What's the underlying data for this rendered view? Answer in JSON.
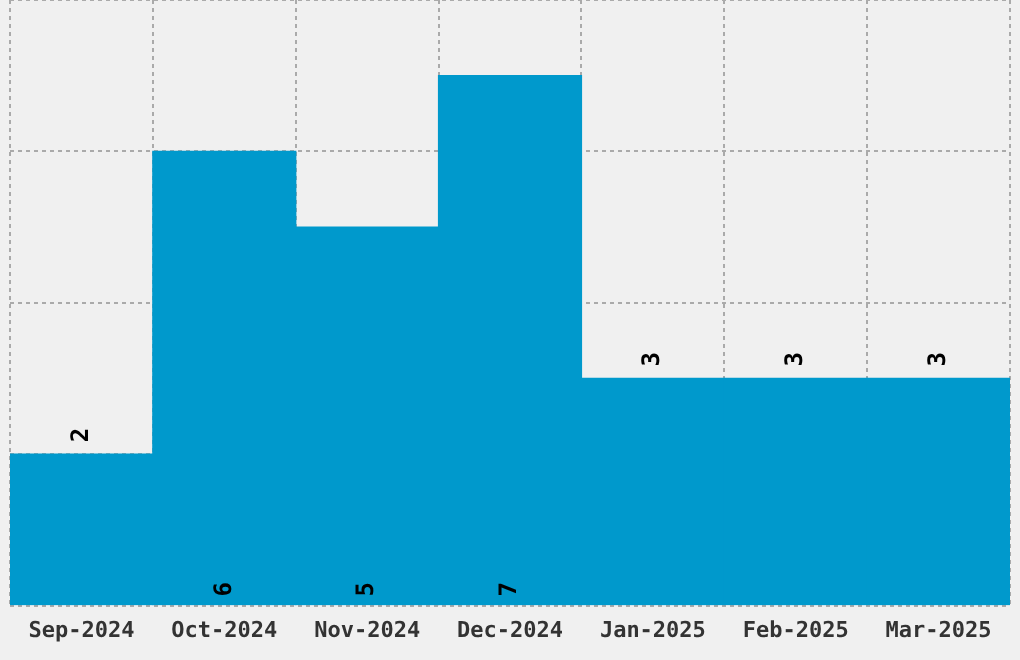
{
  "chart_data": {
    "type": "bar",
    "categories": [
      "Sep-2024",
      "Oct-2024",
      "Nov-2024",
      "Dec-2024",
      "Jan-2025",
      "Feb-2025",
      "Mar-2025"
    ],
    "values": [
      2,
      6,
      5,
      7,
      3,
      3,
      3
    ],
    "color": "#0099cc",
    "ylim": [
      0,
      8
    ],
    "yticks": [
      {
        "value": 0,
        "label": null
      },
      {
        "value": 2,
        "label": null
      },
      {
        "value": 4,
        "label": null
      },
      {
        "value": 6,
        "label": null
      },
      {
        "value": 8,
        "label": null
      }
    ],
    "tick_labels": "x",
    "grid": true,
    "data_labels": true
  }
}
